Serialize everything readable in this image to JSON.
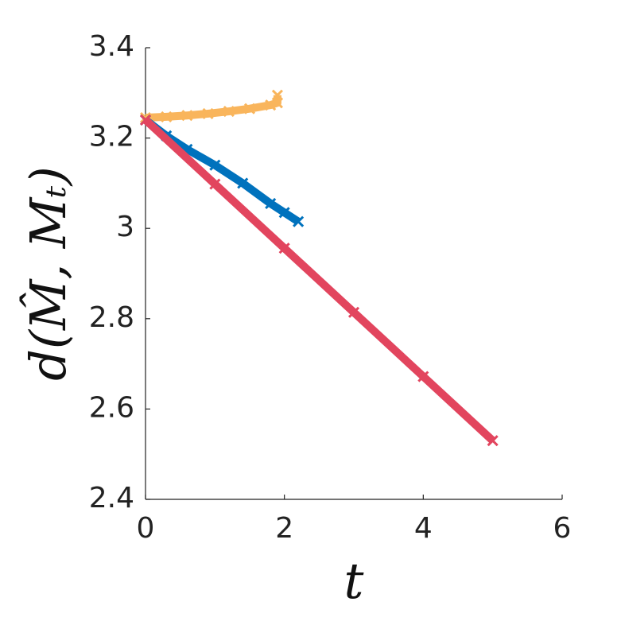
{
  "chart_data": {
    "type": "line",
    "xlabel": "t",
    "ylabel": "d(M̂, Mₜ)",
    "series": [
      {
        "color": "#f9b55c",
        "x": [
          0,
          0.3,
          0.6,
          0.9,
          1.2,
          1.5,
          1.8,
          1.9,
          1.9
        ],
        "values": [
          3.245,
          3.247,
          3.25,
          3.254,
          3.259,
          3.265,
          3.273,
          3.278,
          3.295
        ]
      },
      {
        "color": "#0072bd",
        "x": [
          0,
          0.3,
          0.6,
          1.0,
          1.4,
          1.8,
          2.0,
          2.2
        ],
        "values": [
          3.24,
          3.205,
          3.175,
          3.14,
          3.1,
          3.055,
          3.035,
          3.015
        ]
      },
      {
        "color": "#e2455e",
        "x": [
          0,
          1,
          2,
          3,
          4,
          5
        ],
        "values": [
          3.24,
          3.098,
          2.956,
          2.814,
          2.672,
          2.53
        ]
      }
    ],
    "xlim": [
      0,
      6
    ],
    "xticks": [
      0,
      2,
      4,
      6
    ],
    "ylim": [
      2.4,
      3.4
    ],
    "yticks": [
      2.4,
      2.6,
      2.8,
      3,
      3.2,
      3.4
    ]
  }
}
